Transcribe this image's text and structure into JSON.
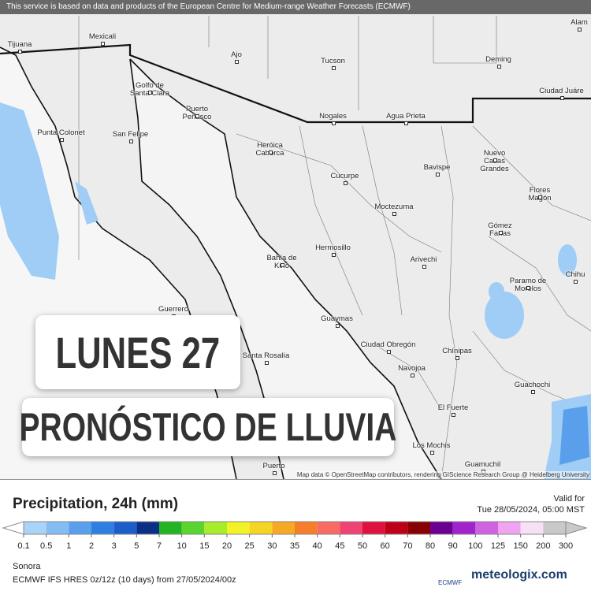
{
  "header": {
    "notice": "This service is based on data and products of the European Centre for Medium-range Weather Forecasts (ECMWF)"
  },
  "places": [
    "Tijuana",
    "Mexicali",
    "Ajo",
    "Tucson",
    "Deming",
    "Alam",
    "Nogales",
    "Agua Prieta",
    "Ciudad Juáre",
    "Golfo de Santa Clara",
    "Puerto Peñasco",
    "Punta Colonet",
    "San Felipe",
    "Heróica Caborca",
    "Cucurpe",
    "Bavispe",
    "Nuevo Casas Grandes",
    "Flores Magón",
    "Moctezuma",
    "Gómez Farías",
    "Hermosillo",
    "Bahía de Kino",
    "Arivechi",
    "Chihu",
    "Paramo de Morelos",
    "Guerrero",
    "Guaymas",
    "Ciudad Obregón",
    "Chínipas",
    "Santa Rosalía",
    "Navojoa",
    "Guachochi",
    "El Fuerte",
    "Los Mochis",
    "Guamuchil",
    "Puerto"
  ],
  "overlay": {
    "day": "LUNES 27",
    "subtitle": "PRONÓSTICO DE LLUVIA"
  },
  "attribution": "Map data © OpenStreetMap contributors, rendering GIScience Research Group @ Heidelberg University",
  "legend": {
    "title": "Precipitation, 24h (mm)",
    "valid_label": "Valid for",
    "valid_time": "Tue 28/05/2024, 05:00 MST",
    "ticks": [
      0.1,
      0.5,
      1,
      2,
      3,
      5,
      7,
      10,
      15,
      20,
      25,
      30,
      35,
      40,
      45,
      50,
      60,
      70,
      80,
      90,
      100,
      125,
      150,
      200,
      300
    ],
    "colors": [
      "#a9d3f7",
      "#84bcf3",
      "#5a9fec",
      "#2f7fe2",
      "#1c5ec9",
      "#0c2f86",
      "#23b423",
      "#5ad42f",
      "#a8ec2a",
      "#f2f226",
      "#f5d523",
      "#f6a923",
      "#f67e2a",
      "#f86a62",
      "#f04374",
      "#de1140",
      "#bd0018",
      "#880000",
      "#6b0090",
      "#a023cf",
      "#cf62e0",
      "#efa3f0",
      "#f7e1f7",
      "#c9c9c9"
    ]
  },
  "footer": {
    "region": "Sonora",
    "model": "ECMWF IFS HRES 0z/12z (10 days) from 27/05/2024/00z",
    "ecmwf": "ECMWF",
    "brand": "meteologix.com"
  }
}
